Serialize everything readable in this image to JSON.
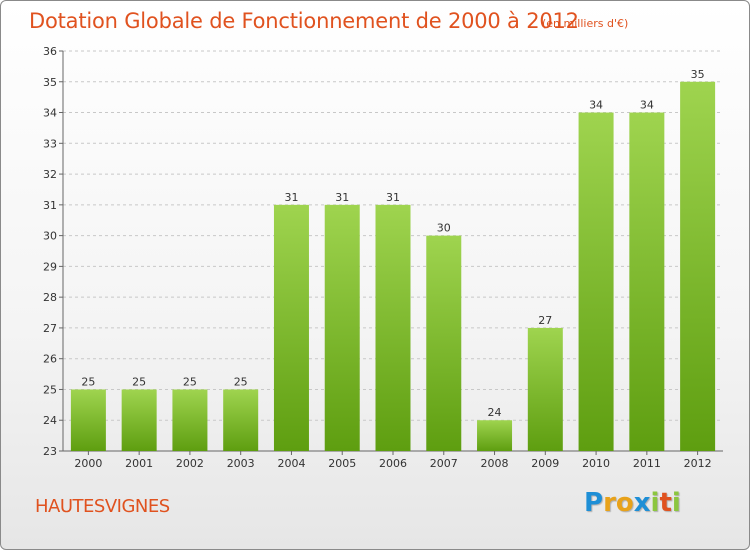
{
  "title": "Dotation Globale de Fonctionnement de 2000 à 2012",
  "subtitle": "(en milliers d'€)",
  "commune": "HAUTESVIGNES",
  "logo": {
    "letters": [
      "P",
      "r",
      "o",
      "x",
      "i",
      "t",
      "i"
    ],
    "colors": [
      "#1e8fd6",
      "#e8a21a",
      "#e8a21a",
      "#1e8fd6",
      "#8cc63f",
      "#e0521f",
      "#8cc63f"
    ]
  },
  "colors": {
    "accent": "#e0521f",
    "bar_top": "#9fd44f",
    "bar_bottom": "#5e9e10",
    "grid": "#c8c8c8"
  },
  "chart_data": {
    "type": "bar",
    "categories": [
      "2000",
      "2001",
      "2002",
      "2003",
      "2004",
      "2005",
      "2006",
      "2007",
      "2008",
      "2009",
      "2010",
      "2011",
      "2012"
    ],
    "values": [
      25,
      25,
      25,
      25,
      31,
      31,
      31,
      30,
      24,
      27,
      34,
      34,
      35
    ],
    "title": "Dotation Globale de Fonctionnement de 2000 à 2012",
    "xlabel": "",
    "ylabel": "",
    "ylim": [
      23,
      36
    ],
    "yticks": [
      23,
      24,
      25,
      26,
      27,
      28,
      29,
      30,
      31,
      32,
      33,
      34,
      35,
      36
    ],
    "grid": true,
    "grid_style": "dashed horizontal",
    "data_labels": true
  }
}
